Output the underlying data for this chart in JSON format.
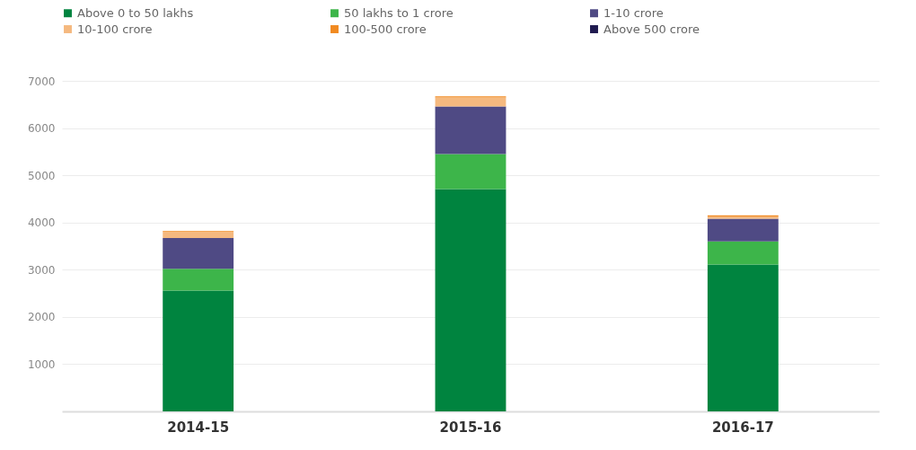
{
  "chart_data": {
    "type": "bar",
    "stacked": true,
    "categories": [
      "2014-15",
      "2015-16",
      "2016-17"
    ],
    "series": [
      {
        "name": "Above 0 to 50 lakhs",
        "color": "#00843f",
        "values": [
          2560,
          4710,
          3110
        ]
      },
      {
        "name": "50 lakhs to 1 crore",
        "color": "#3db54a",
        "values": [
          460,
          740,
          490
        ]
      },
      {
        "name": "1-10 crore",
        "color": "#4f4a84",
        "values": [
          650,
          1010,
          480
        ]
      },
      {
        "name": "10-100 crore",
        "color": "#f5b97f",
        "values": [
          130,
          190,
          50
        ]
      },
      {
        "name": "100-500 crore",
        "color": "#f18a21",
        "values": [
          20,
          20,
          20
        ]
      },
      {
        "name": "Above 500 crore",
        "color": "#1f1a4f",
        "values": [
          null,
          null,
          null
        ]
      }
    ],
    "ylim": [
      0,
      7000
    ],
    "yticks": [
      1000,
      2000,
      3000,
      4000,
      5000,
      6000,
      7000
    ],
    "grid": "y",
    "legend": "top"
  }
}
